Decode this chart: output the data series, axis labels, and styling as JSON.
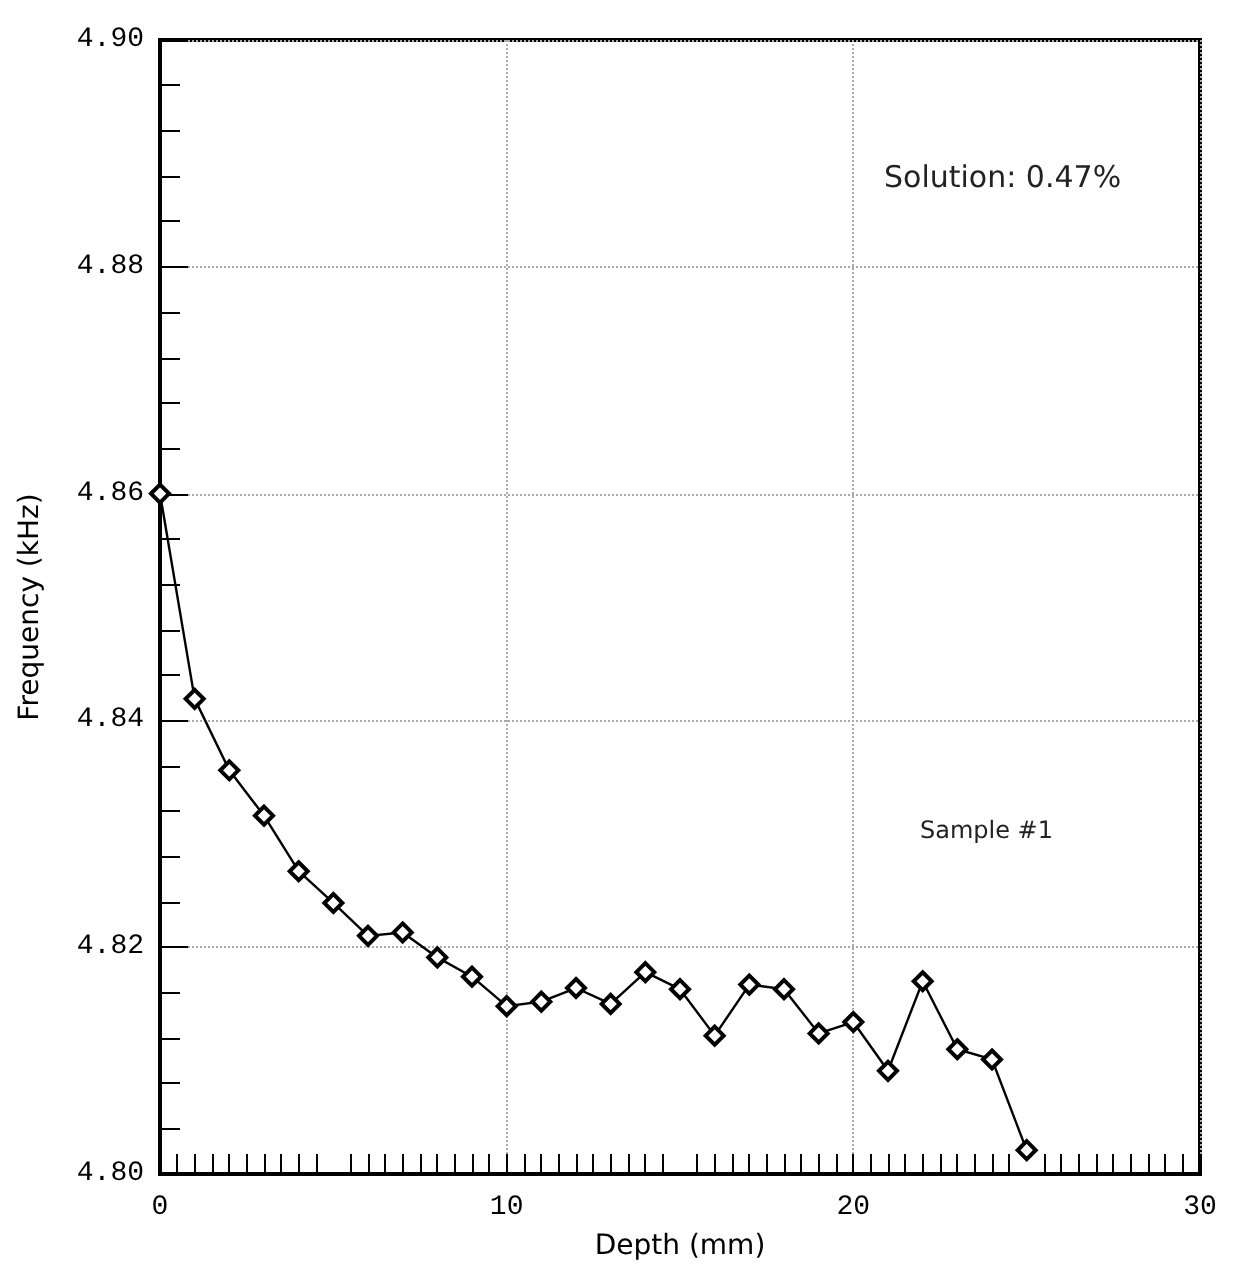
{
  "chart_data": {
    "type": "line",
    "xlabel": "Depth (mm)",
    "ylabel": "Frequency (kHz)",
    "annotations": [
      "Solution: 0.47%",
      "Sample #1"
    ],
    "x": [
      0,
      1,
      2,
      3,
      4,
      5,
      6,
      7,
      8,
      9,
      10,
      11,
      12,
      13,
      14,
      15,
      16,
      17,
      18,
      19,
      20,
      21,
      22,
      23,
      24,
      25
    ],
    "series": [
      {
        "color": "#000000",
        "values": [
          4.86,
          4.8419,
          4.8356,
          4.8316,
          4.8267,
          4.8239,
          4.821,
          4.8213,
          4.8191,
          4.8174,
          4.8148,
          4.8152,
          4.8164,
          4.815,
          4.8178,
          4.8163,
          4.8122,
          4.8167,
          4.8163,
          4.8124,
          4.8134,
          4.8091,
          4.817,
          4.811,
          4.8101,
          4.8021
        ]
      }
    ],
    "xlim": [
      0,
      30
    ],
    "xticks": [
      0,
      10,
      20,
      30
    ],
    "ylim": [
      4.8,
      4.9
    ],
    "yticks": [
      {
        "value": 4.8,
        "label": "4.80"
      },
      {
        "value": 4.82,
        "label": "4.82"
      },
      {
        "value": 4.84,
        "label": "4.84"
      },
      {
        "value": 4.86,
        "label": "4.86"
      },
      {
        "value": 4.88,
        "label": "4.88"
      },
      {
        "value": 4.9,
        "label": "4.90"
      }
    ],
    "grid": true,
    "marker": "diamond",
    "line_style": "solid"
  }
}
